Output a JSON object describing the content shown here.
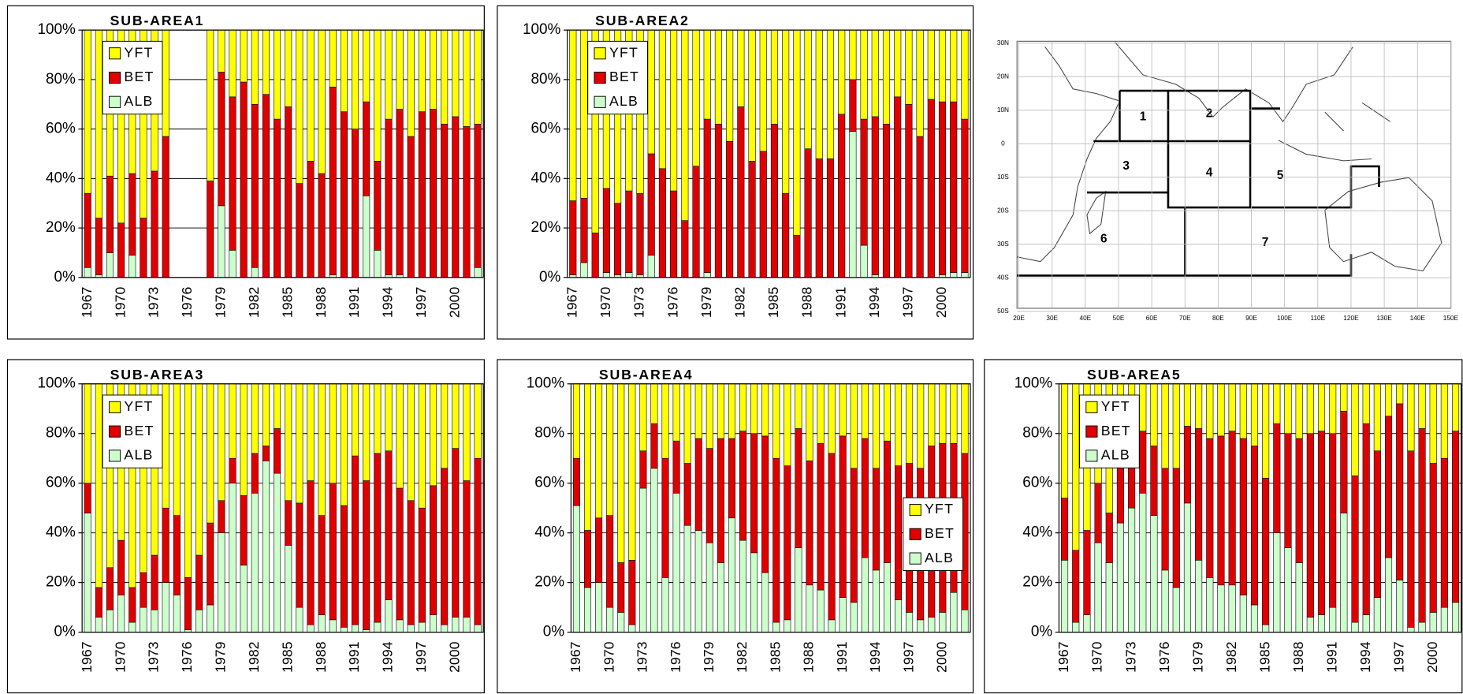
{
  "chart_data": [
    {
      "type": "bar",
      "stacked": true,
      "title": "SUB-AREA1",
      "legend": "top-left",
      "grid": true,
      "categories": [
        "1967",
        null,
        null,
        "1970",
        null,
        null,
        "1973",
        null,
        null,
        "1976",
        null,
        null,
        "1979",
        null,
        null,
        "1982",
        null,
        null,
        "1985",
        null,
        null,
        "1988",
        null,
        null,
        "1991",
        null,
        null,
        "1994",
        null,
        null,
        "1997",
        null,
        null,
        "2000",
        null,
        null
      ],
      "ylim": [
        0,
        100
      ],
      "yticks": [
        {
          "value": 0,
          "label": "0%"
        },
        {
          "value": 20,
          "label": "20%"
        },
        {
          "value": 40,
          "label": "40%"
        },
        {
          "value": 60,
          "label": "60%"
        },
        {
          "value": 80,
          "label": "80%"
        },
        {
          "value": 100,
          "label": "100%"
        }
      ],
      "series": [
        {
          "name": "ALB",
          "color": "#ccffcc",
          "values": [
            4,
            1,
            10,
            0,
            9,
            0,
            0,
            0,
            null,
            null,
            null,
            0,
            29,
            11,
            0,
            4,
            0,
            0,
            0,
            0,
            0,
            0,
            1,
            0,
            0,
            33,
            11,
            1,
            1,
            0,
            0,
            0,
            0,
            0,
            0,
            4
          ]
        },
        {
          "name": "BET",
          "color": "#e00000",
          "values": [
            30,
            23,
            31,
            22,
            33,
            24,
            43,
            57,
            null,
            null,
            null,
            39,
            54,
            62,
            79,
            66,
            74,
            64,
            69,
            38,
            47,
            42,
            76,
            67,
            60,
            38,
            36,
            63,
            67,
            57,
            67,
            68,
            62,
            65,
            61,
            58
          ]
        },
        {
          "name": "YFT",
          "color": "#ffff00",
          "values": [
            66,
            76,
            59,
            78,
            58,
            76,
            57,
            43,
            null,
            null,
            null,
            61,
            17,
            27,
            21,
            30,
            26,
            36,
            31,
            62,
            53,
            58,
            23,
            33,
            40,
            29,
            53,
            36,
            32,
            43,
            33,
            32,
            38,
            35,
            39,
            38
          ]
        }
      ]
    },
    {
      "type": "bar",
      "stacked": true,
      "title": "SUB-AREA2",
      "legend": "top-left",
      "grid": true,
      "categories": [
        "1967",
        null,
        null,
        "1970",
        null,
        null,
        "1973",
        null,
        null,
        "1976",
        null,
        null,
        "1979",
        null,
        null,
        "1982",
        null,
        null,
        "1985",
        null,
        null,
        "1988",
        null,
        null,
        "1991",
        null,
        null,
        "1994",
        null,
        null,
        "1997",
        null,
        null,
        "2000",
        null,
        null
      ],
      "ylim": [
        0,
        100
      ],
      "yticks": [
        {
          "value": 0,
          "label": "0%"
        },
        {
          "value": 20,
          "label": "20%"
        },
        {
          "value": 40,
          "label": "40%"
        },
        {
          "value": 60,
          "label": "60%"
        },
        {
          "value": 80,
          "label": "80%"
        },
        {
          "value": 100,
          "label": "100%"
        }
      ],
      "series": [
        {
          "name": "ALB",
          "color": "#ccffcc",
          "values": [
            1,
            6,
            0,
            2,
            1,
            2,
            1,
            9,
            0,
            0,
            0,
            0,
            2,
            0,
            0,
            0,
            0,
            0,
            0,
            0,
            0,
            0,
            0,
            0,
            0,
            59,
            13,
            1,
            0,
            0,
            0,
            0,
            0,
            1,
            2,
            2
          ]
        },
        {
          "name": "BET",
          "color": "#e00000",
          "values": [
            30,
            26,
            18,
            34,
            29,
            33,
            33,
            41,
            44,
            35,
            23,
            45,
            62,
            62,
            55,
            69,
            47,
            51,
            62,
            34,
            17,
            52,
            48,
            48,
            66,
            21,
            51,
            64,
            62,
            73,
            70,
            57,
            72,
            70,
            69,
            62
          ]
        },
        {
          "name": "YFT",
          "color": "#ffff00",
          "values": [
            69,
            68,
            82,
            64,
            70,
            65,
            66,
            50,
            56,
            65,
            77,
            55,
            36,
            38,
            45,
            31,
            53,
            49,
            38,
            66,
            83,
            48,
            52,
            52,
            34,
            20,
            36,
            35,
            38,
            27,
            30,
            43,
            28,
            29,
            29,
            36
          ]
        }
      ]
    },
    {
      "type": "bar",
      "stacked": true,
      "title": "SUB-AREA3",
      "legend": "top-left",
      "grid": true,
      "categories": [
        "1967",
        null,
        null,
        "1970",
        null,
        null,
        "1973",
        null,
        null,
        "1976",
        null,
        null,
        "1979",
        null,
        null,
        "1982",
        null,
        null,
        "1985",
        null,
        null,
        "1988",
        null,
        null,
        "1991",
        null,
        null,
        "1994",
        null,
        null,
        "1997",
        null,
        null,
        "2000",
        null,
        null
      ],
      "ylim": [
        0,
        100
      ],
      "yticks": [
        {
          "value": 0,
          "label": "0%"
        },
        {
          "value": 20,
          "label": "20%"
        },
        {
          "value": 40,
          "label": "40%"
        },
        {
          "value": 60,
          "label": "60%"
        },
        {
          "value": 80,
          "label": "80%"
        },
        {
          "value": 100,
          "label": "100%"
        }
      ],
      "series": [
        {
          "name": "ALB",
          "color": "#ccffcc",
          "values": [
            48,
            6,
            9,
            15,
            4,
            10,
            9,
            20,
            15,
            1,
            9,
            11,
            40,
            60,
            27,
            56,
            69,
            64,
            35,
            10,
            3,
            7,
            5,
            2,
            3,
            1,
            4,
            13,
            5,
            3,
            4,
            7,
            3,
            6,
            6,
            3
          ]
        },
        {
          "name": "BET",
          "color": "#e00000",
          "values": [
            12,
            12,
            17,
            22,
            14,
            14,
            22,
            30,
            32,
            21,
            22,
            33,
            13,
            10,
            28,
            16,
            6,
            18,
            18,
            42,
            58,
            40,
            55,
            49,
            68,
            60,
            68,
            60,
            53,
            50,
            46,
            52,
            63,
            68,
            55,
            67
          ]
        },
        {
          "name": "YFT",
          "color": "#ffff00",
          "values": [
            40,
            82,
            74,
            63,
            82,
            76,
            69,
            50,
            53,
            78,
            69,
            56,
            47,
            30,
            45,
            28,
            25,
            18,
            47,
            48,
            39,
            53,
            40,
            49,
            29,
            39,
            28,
            27,
            42,
            47,
            50,
            41,
            34,
            26,
            39,
            30
          ]
        }
      ]
    },
    {
      "type": "bar",
      "stacked": true,
      "title": "SUB-AREA4",
      "legend": "bottom-right",
      "grid": true,
      "categories": [
        "1967",
        null,
        null,
        "1970",
        null,
        null,
        "1973",
        null,
        null,
        "1976",
        null,
        null,
        "1979",
        null,
        null,
        "1982",
        null,
        null,
        "1985",
        null,
        null,
        "1988",
        null,
        null,
        "1991",
        null,
        null,
        "1994",
        null,
        null,
        "1997",
        null,
        null,
        "2000",
        null,
        null
      ],
      "ylim": [
        0,
        100
      ],
      "yticks": [
        {
          "value": 0,
          "label": "0%"
        },
        {
          "value": 20,
          "label": "20%"
        },
        {
          "value": 40,
          "label": "40%"
        },
        {
          "value": 60,
          "label": "60%"
        },
        {
          "value": 80,
          "label": "80%"
        },
        {
          "value": 100,
          "label": "100%"
        }
      ],
      "series": [
        {
          "name": "ALB",
          "color": "#ccffcc",
          "values": [
            51,
            18,
            20,
            10,
            8,
            3,
            58,
            66,
            22,
            56,
            43,
            41,
            36,
            28,
            46,
            37,
            32,
            24,
            4,
            5,
            34,
            19,
            17,
            5,
            14,
            12,
            30,
            25,
            28,
            13,
            8,
            5,
            6,
            8,
            16,
            9
          ]
        },
        {
          "name": "BET",
          "color": "#e00000",
          "values": [
            19,
            23,
            26,
            37,
            20,
            26,
            15,
            18,
            48,
            21,
            25,
            37,
            38,
            50,
            32,
            44,
            48,
            55,
            66,
            62,
            48,
            50,
            59,
            67,
            65,
            54,
            48,
            41,
            49,
            54,
            60,
            61,
            69,
            68,
            60,
            63
          ]
        },
        {
          "name": "YFT",
          "color": "#ffff00",
          "values": [
            30,
            59,
            54,
            53,
            72,
            71,
            27,
            16,
            30,
            23,
            32,
            22,
            26,
            22,
            22,
            19,
            20,
            21,
            30,
            33,
            18,
            31,
            24,
            28,
            21,
            34,
            22,
            34,
            23,
            33,
            32,
            34,
            25,
            24,
            24,
            28
          ]
        }
      ]
    },
    {
      "type": "bar",
      "stacked": true,
      "title": "SUB-AREA5",
      "legend": "top-left",
      "grid": true,
      "categories": [
        "1967",
        null,
        null,
        "1970",
        null,
        null,
        "1973",
        null,
        null,
        "1976",
        null,
        null,
        "1979",
        null,
        null,
        "1982",
        null,
        null,
        "1985",
        null,
        null,
        "1988",
        null,
        null,
        "1991",
        null,
        null,
        "1994",
        null,
        null,
        "1997",
        null,
        null,
        "2000",
        null,
        null
      ],
      "ylim": [
        0,
        100
      ],
      "yticks": [
        {
          "value": 0,
          "label": "0%"
        },
        {
          "value": 20,
          "label": "20%"
        },
        {
          "value": 40,
          "label": "40%"
        },
        {
          "value": 60,
          "label": "60%"
        },
        {
          "value": 80,
          "label": "80%"
        },
        {
          "value": 100,
          "label": "100%"
        }
      ],
      "series": [
        {
          "name": "ALB",
          "color": "#ccffcc",
          "values": [
            29,
            4,
            7,
            36,
            28,
            44,
            50,
            56,
            47,
            25,
            18,
            52,
            29,
            22,
            19,
            19,
            15,
            11,
            3,
            40,
            34,
            28,
            6,
            7,
            10,
            48,
            4,
            7,
            14,
            30,
            21,
            2,
            4,
            8,
            10,
            12
          ]
        },
        {
          "name": "BET",
          "color": "#e00000",
          "values": [
            25,
            29,
            34,
            24,
            20,
            24,
            20,
            25,
            28,
            41,
            48,
            31,
            53,
            56,
            60,
            62,
            63,
            64,
            59,
            44,
            46,
            50,
            74,
            74,
            70,
            41,
            59,
            77,
            59,
            57,
            71,
            71,
            78,
            60,
            60,
            69
          ]
        },
        {
          "name": "YFT",
          "color": "#ffff00",
          "values": [
            46,
            67,
            59,
            40,
            52,
            32,
            30,
            19,
            25,
            34,
            34,
            17,
            18,
            22,
            21,
            19,
            22,
            25,
            38,
            16,
            20,
            22,
            20,
            19,
            20,
            11,
            37,
            16,
            27,
            13,
            8,
            27,
            18,
            32,
            30,
            19
          ]
        }
      ]
    }
  ],
  "map": {
    "regions": [
      "1",
      "2",
      "3",
      "4",
      "5",
      "6",
      "7"
    ],
    "lat_labels": [
      "30N",
      "20N",
      "10N",
      "0",
      "10S",
      "20S",
      "30S",
      "40S",
      "50S"
    ],
    "lon_labels": [
      "20E",
      "30E",
      "40E",
      "50E",
      "60E",
      "70E",
      "80E",
      "90E",
      "100E",
      "110E",
      "120E",
      "130E",
      "140E",
      "150E"
    ]
  }
}
